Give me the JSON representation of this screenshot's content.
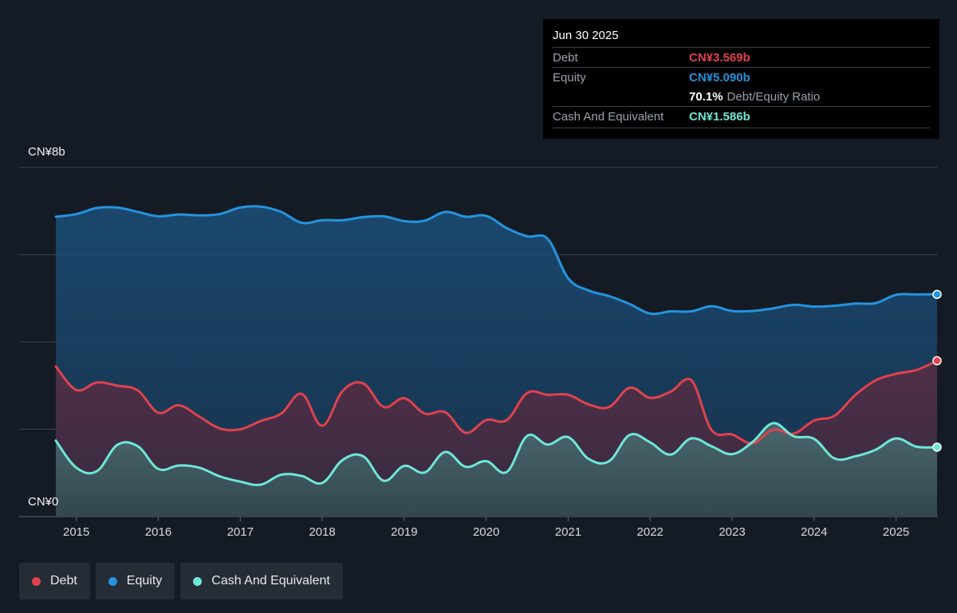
{
  "tooltip": {
    "date": "Jun 30 2025",
    "debt_label": "Debt",
    "debt_value": "CN¥3.569b",
    "equity_label": "Equity",
    "equity_value": "CN¥5.090b",
    "ratio_value": "70.1%",
    "ratio_label": "Debt/Equity Ratio",
    "cash_label": "Cash And Equivalent",
    "cash_value": "CN¥1.586b"
  },
  "legend": [
    {
      "label": "Debt",
      "color": "#e0424d"
    },
    {
      "label": "Equity",
      "color": "#2394df"
    },
    {
      "label": "Cash And Equivalent",
      "color": "#6ee7d6"
    }
  ],
  "colors": {
    "debt": "#e0424d",
    "equity": "#2394df",
    "cash": "#6ee7d6",
    "background": "#151b24"
  },
  "chart_data": {
    "type": "area",
    "y_unit": "CN¥ billions",
    "ylim": [
      0,
      8
    ],
    "y_tick_labels": {
      "top": "CN¥8b",
      "bottom": "CN¥0"
    },
    "x_ticks": [
      "2015",
      "2016",
      "2017",
      "2018",
      "2019",
      "2020",
      "2021",
      "2022",
      "2023",
      "2024",
      "2025"
    ],
    "series": [
      {
        "name": "Equity",
        "points": [
          [
            2014.75,
            6.87
          ],
          [
            2015.0,
            6.93
          ],
          [
            2015.25,
            7.07
          ],
          [
            2015.5,
            7.08
          ],
          [
            2015.75,
            6.98
          ],
          [
            2016.0,
            6.88
          ],
          [
            2016.25,
            6.92
          ],
          [
            2016.5,
            6.9
          ],
          [
            2016.75,
            6.93
          ],
          [
            2017.0,
            7.08
          ],
          [
            2017.25,
            7.1
          ],
          [
            2017.5,
            6.98
          ],
          [
            2017.75,
            6.73
          ],
          [
            2018.0,
            6.79
          ],
          [
            2018.25,
            6.79
          ],
          [
            2018.5,
            6.86
          ],
          [
            2018.75,
            6.88
          ],
          [
            2019.0,
            6.77
          ],
          [
            2019.25,
            6.78
          ],
          [
            2019.5,
            6.98
          ],
          [
            2019.75,
            6.87
          ],
          [
            2020.0,
            6.89
          ],
          [
            2020.25,
            6.61
          ],
          [
            2020.5,
            6.42
          ],
          [
            2020.75,
            6.36
          ],
          [
            2021.0,
            5.46
          ],
          [
            2021.25,
            5.18
          ],
          [
            2021.5,
            5.05
          ],
          [
            2021.75,
            4.87
          ],
          [
            2022.0,
            4.65
          ],
          [
            2022.25,
            4.7
          ],
          [
            2022.5,
            4.7
          ],
          [
            2022.75,
            4.82
          ],
          [
            2023.0,
            4.71
          ],
          [
            2023.25,
            4.71
          ],
          [
            2023.5,
            4.77
          ],
          [
            2023.75,
            4.85
          ],
          [
            2024.0,
            4.81
          ],
          [
            2024.25,
            4.83
          ],
          [
            2024.5,
            4.88
          ],
          [
            2024.75,
            4.89
          ],
          [
            2025.0,
            5.08
          ],
          [
            2025.25,
            5.09
          ],
          [
            2025.5,
            5.09
          ]
        ]
      },
      {
        "name": "Debt",
        "points": [
          [
            2014.75,
            3.44
          ],
          [
            2015.0,
            2.9
          ],
          [
            2015.25,
            3.07
          ],
          [
            2015.5,
            3.0
          ],
          [
            2015.75,
            2.89
          ],
          [
            2016.0,
            2.38
          ],
          [
            2016.25,
            2.55
          ],
          [
            2016.5,
            2.29
          ],
          [
            2016.75,
            2.02
          ],
          [
            2017.0,
            2.0
          ],
          [
            2017.25,
            2.19
          ],
          [
            2017.5,
            2.36
          ],
          [
            2017.75,
            2.81
          ],
          [
            2018.0,
            2.08
          ],
          [
            2018.25,
            2.88
          ],
          [
            2018.5,
            3.05
          ],
          [
            2018.75,
            2.51
          ],
          [
            2019.0,
            2.71
          ],
          [
            2019.25,
            2.36
          ],
          [
            2019.5,
            2.39
          ],
          [
            2019.75,
            1.92
          ],
          [
            2020.0,
            2.21
          ],
          [
            2020.25,
            2.21
          ],
          [
            2020.5,
            2.83
          ],
          [
            2020.75,
            2.79
          ],
          [
            2021.0,
            2.79
          ],
          [
            2021.25,
            2.57
          ],
          [
            2021.5,
            2.51
          ],
          [
            2021.75,
            2.95
          ],
          [
            2022.0,
            2.72
          ],
          [
            2022.25,
            2.86
          ],
          [
            2022.5,
            3.13
          ],
          [
            2022.75,
            1.98
          ],
          [
            2023.0,
            1.88
          ],
          [
            2023.25,
            1.68
          ],
          [
            2023.5,
            1.99
          ],
          [
            2023.75,
            1.9
          ],
          [
            2024.0,
            2.2
          ],
          [
            2024.25,
            2.31
          ],
          [
            2024.5,
            2.78
          ],
          [
            2024.75,
            3.12
          ],
          [
            2025.0,
            3.27
          ],
          [
            2025.25,
            3.36
          ],
          [
            2025.5,
            3.57
          ]
        ]
      },
      {
        "name": "Cash And Equivalent",
        "points": [
          [
            2014.75,
            1.74
          ],
          [
            2015.0,
            1.12
          ],
          [
            2015.25,
            1.04
          ],
          [
            2015.5,
            1.64
          ],
          [
            2015.75,
            1.61
          ],
          [
            2016.0,
            1.09
          ],
          [
            2016.25,
            1.17
          ],
          [
            2016.5,
            1.12
          ],
          [
            2016.75,
            0.92
          ],
          [
            2017.0,
            0.8
          ],
          [
            2017.25,
            0.73
          ],
          [
            2017.5,
            0.96
          ],
          [
            2017.75,
            0.93
          ],
          [
            2018.0,
            0.77
          ],
          [
            2018.25,
            1.3
          ],
          [
            2018.5,
            1.38
          ],
          [
            2018.75,
            0.82
          ],
          [
            2019.0,
            1.16
          ],
          [
            2019.25,
            1.01
          ],
          [
            2019.5,
            1.48
          ],
          [
            2019.75,
            1.14
          ],
          [
            2020.0,
            1.27
          ],
          [
            2020.25,
            1.02
          ],
          [
            2020.5,
            1.85
          ],
          [
            2020.75,
            1.65
          ],
          [
            2021.0,
            1.82
          ],
          [
            2021.25,
            1.32
          ],
          [
            2021.5,
            1.27
          ],
          [
            2021.75,
            1.87
          ],
          [
            2022.0,
            1.7
          ],
          [
            2022.25,
            1.42
          ],
          [
            2022.5,
            1.79
          ],
          [
            2022.75,
            1.61
          ],
          [
            2023.0,
            1.43
          ],
          [
            2023.25,
            1.71
          ],
          [
            2023.5,
            2.14
          ],
          [
            2023.75,
            1.84
          ],
          [
            2024.0,
            1.78
          ],
          [
            2024.25,
            1.33
          ],
          [
            2024.5,
            1.38
          ],
          [
            2024.75,
            1.53
          ],
          [
            2025.0,
            1.79
          ],
          [
            2025.25,
            1.6
          ],
          [
            2025.5,
            1.59
          ]
        ]
      }
    ],
    "grid": true
  }
}
